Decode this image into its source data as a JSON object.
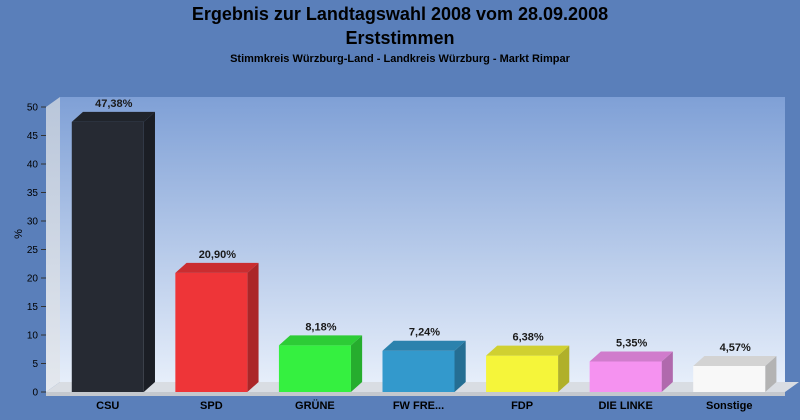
{
  "chart_data": {
    "type": "bar",
    "title": "Ergebnis zur Landtagswahl 2008 vom 28.09.2008",
    "title_line2": "Erststimmen",
    "subtitle": "Stimmkreis Würzburg-Land - Landkreis Würzburg - Markt Rimpar",
    "ylabel": "%",
    "ylim": [
      0,
      50
    ],
    "yticks": [
      0,
      5,
      10,
      15,
      20,
      25,
      30,
      35,
      40,
      45,
      50
    ],
    "categories": [
      "CSU",
      "SPD",
      "GRÜNE",
      "FW FRE...",
      "FDP",
      "DIE LINKE",
      "Sonstige"
    ],
    "values": [
      47.38,
      20.9,
      8.18,
      7.24,
      6.38,
      5.35,
      4.57
    ],
    "data_labels": [
      "47,38%",
      "20,90%",
      "8,18%",
      "7,24%",
      "6,38%",
      "5,35%",
      "4,57%"
    ],
    "colors": [
      "#262a33",
      "#ee3538",
      "#35f040",
      "#3399cc",
      "#f5f53a",
      "#f592f0",
      "#f8f8f8"
    ],
    "grid": false,
    "legend": "none"
  }
}
